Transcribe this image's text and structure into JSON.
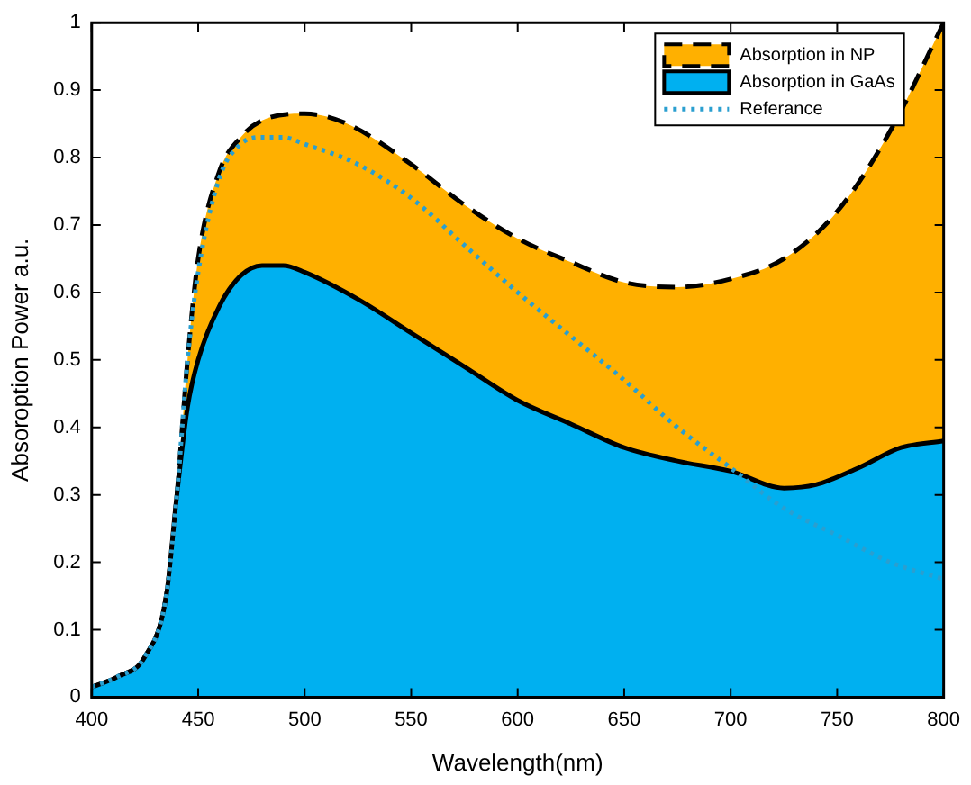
{
  "chart_data": {
    "type": "area",
    "xlabel": "Wavelength(nm)",
    "ylabel": "Absoroption Power a.u.",
    "xlim": [
      400,
      800
    ],
    "ylim": [
      0,
      1
    ],
    "xticks": [
      400,
      450,
      500,
      550,
      600,
      650,
      700,
      750,
      800
    ],
    "yticks": [
      0,
      0.1,
      0.2,
      0.3,
      0.4,
      0.5,
      0.6,
      0.7,
      0.8,
      0.9,
      1
    ],
    "grid": false,
    "legend": "top right",
    "marker": "none",
    "series": [
      {
        "name": "Absorption in NP",
        "type": "area",
        "color": "#ffb000",
        "line_style": "dashed",
        "x": [
          400,
          412,
          425,
          435,
          440,
          445,
          450,
          460,
          470,
          480,
          500,
          520,
          550,
          575,
          600,
          625,
          650,
          675,
          700,
          725,
          750,
          775,
          800
        ],
        "values": [
          0.015,
          0.03,
          0.06,
          0.15,
          0.3,
          0.5,
          0.65,
          0.78,
          0.83,
          0.855,
          0.865,
          0.85,
          0.79,
          0.73,
          0.68,
          0.645,
          0.615,
          0.608,
          0.62,
          0.65,
          0.72,
          0.84,
          1.0
        ]
      },
      {
        "name": "Absorption in GaAs",
        "type": "area",
        "color": "#00b0f0",
        "line_style": "solid",
        "x": [
          400,
          412,
          425,
          435,
          440,
          445,
          450,
          460,
          470,
          480,
          490,
          500,
          525,
          550,
          575,
          600,
          625,
          650,
          675,
          700,
          725,
          740,
          760,
          780,
          800
        ],
        "values": [
          0.015,
          0.03,
          0.06,
          0.15,
          0.3,
          0.43,
          0.5,
          0.58,
          0.625,
          0.64,
          0.64,
          0.63,
          0.59,
          0.54,
          0.49,
          0.44,
          0.405,
          0.37,
          0.35,
          0.335,
          0.31,
          0.315,
          0.34,
          0.37,
          0.38
        ]
      },
      {
        "name": "Referance",
        "type": "line",
        "color": "#2a9fd0",
        "line_style": "dotted",
        "x": [
          400,
          412,
          425,
          435,
          440,
          445,
          450,
          460,
          470,
          480,
          490,
          500,
          525,
          550,
          575,
          600,
          625,
          650,
          675,
          700,
          725,
          750,
          775,
          800
        ],
        "values": [
          0.015,
          0.03,
          0.06,
          0.15,
          0.3,
          0.5,
          0.63,
          0.77,
          0.82,
          0.83,
          0.83,
          0.82,
          0.79,
          0.74,
          0.67,
          0.6,
          0.535,
          0.47,
          0.4,
          0.34,
          0.28,
          0.24,
          0.2,
          0.175
        ]
      }
    ]
  }
}
